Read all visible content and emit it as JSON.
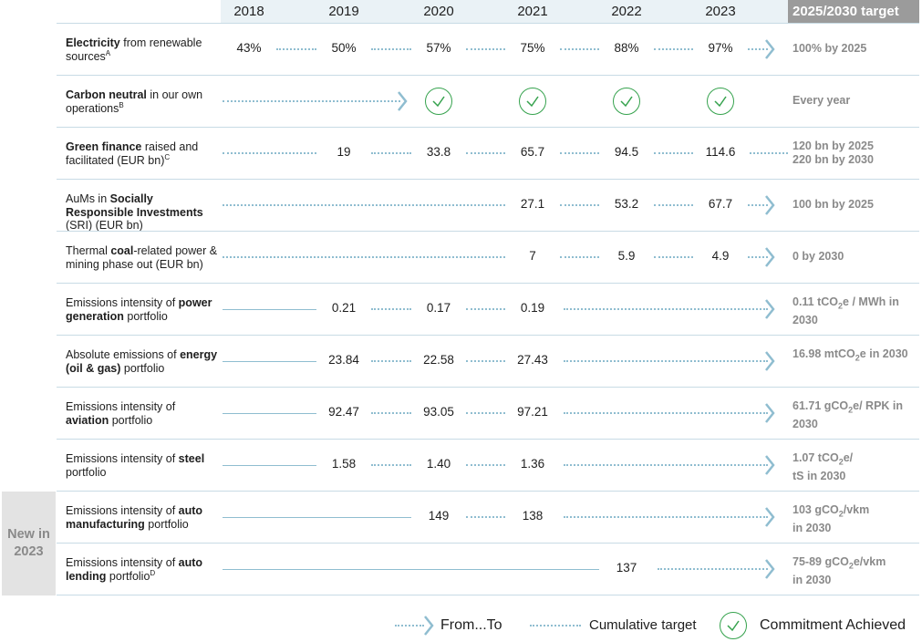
{
  "header": {
    "years": [
      "2018",
      "2019",
      "2020",
      "2021",
      "2022",
      "2023"
    ],
    "target_label": "2025/2030 target"
  },
  "rows": [
    {
      "label_html": "<b>Electricity</b> from renewable sources<span class=\"sup\">A</span>",
      "values": [
        "43%",
        "50%",
        "57%",
        "75%",
        "88%",
        "97%"
      ],
      "target_html": "100% by 2025"
    },
    {
      "label_html": "<b>Carbon neutral</b> in our own operations<span class=\"sup\">B</span>",
      "values": [
        "",
        "",
        "check",
        "check",
        "check",
        "check"
      ],
      "target_html": "Every year"
    },
    {
      "label_html": "<b>Green finance</b> raised and facilitated (EUR bn)<span class=\"sup\">C</span>",
      "values": [
        "",
        "19",
        "33.8",
        "65.7",
        "94.5",
        "114.6"
      ],
      "target_html": "120 bn by 2025<br>220 bn by 2030"
    },
    {
      "label_html": "AuMs in <b>Socially Responsible Investments</b> (SRI) (EUR bn)",
      "values": [
        "",
        "",
        "",
        "27.1",
        "53.2",
        "67.7"
      ],
      "target_html": "100 bn by 2025"
    },
    {
      "label_html": "Thermal <b>coal</b>-related power &amp; mining phase out (EUR bn)",
      "values": [
        "",
        "",
        "",
        "7",
        "5.9",
        "4.9"
      ],
      "target_html": "0 by 2030"
    },
    {
      "label_html": "Emissions intensity of <b>power generation</b> portfolio",
      "values": [
        "",
        "0.21",
        "0.17",
        "0.19",
        "",
        ""
      ],
      "target_html": "0.11 tCO<sub>2</sub>e / MWh in 2030"
    },
    {
      "label_html": "Absolute emissions of <b>energy (oil &amp; gas)</b> portfolio",
      "values": [
        "",
        "23.84",
        "22.58",
        "27.43",
        "",
        ""
      ],
      "target_html": "16.98 mtCO<sub>2</sub>e in 2030"
    },
    {
      "label_html": "Emissions intensity of <b>aviation</b> portfolio",
      "values": [
        "",
        "92.47",
        "93.05",
        "97.21",
        "",
        ""
      ],
      "target_html": "61.71 gCO<sub>2</sub>e/ RPK in 2030"
    },
    {
      "label_html": "Emissions intensity of <b>steel</b> portfolio",
      "values": [
        "",
        "1.58",
        "1.40",
        "1.36",
        "",
        ""
      ],
      "target_html": "1.07 tCO<sub>2</sub>e/<br>tS in 2030"
    },
    {
      "label_html": "Emissions intensity of <b>auto manufacturing</b> portfolio",
      "values": [
        "",
        "",
        "149",
        "138",
        "",
        ""
      ],
      "target_html": "103 gCO<sub>2</sub>/vkm<br>in 2030"
    },
    {
      "label_html": "Emissions intensity of <b>auto lending</b> portfolio<span class=\"sup\">D</span>",
      "values": [
        "",
        "",
        "",
        "",
        "137",
        ""
      ],
      "target_html": "75-89 gCO<sub>2</sub>e/vkm<br>in 2030"
    }
  ],
  "new_badge": "New in 2023",
  "legend": {
    "from_to": "From...To",
    "cumulative": "Cumulative target",
    "achieved": "Commitment Achieved"
  },
  "colors": {
    "line": "#8fbdd0",
    "check": "#35a24d",
    "target_text": "#8a8a8a",
    "header_bg": "#eaf2f6"
  }
}
